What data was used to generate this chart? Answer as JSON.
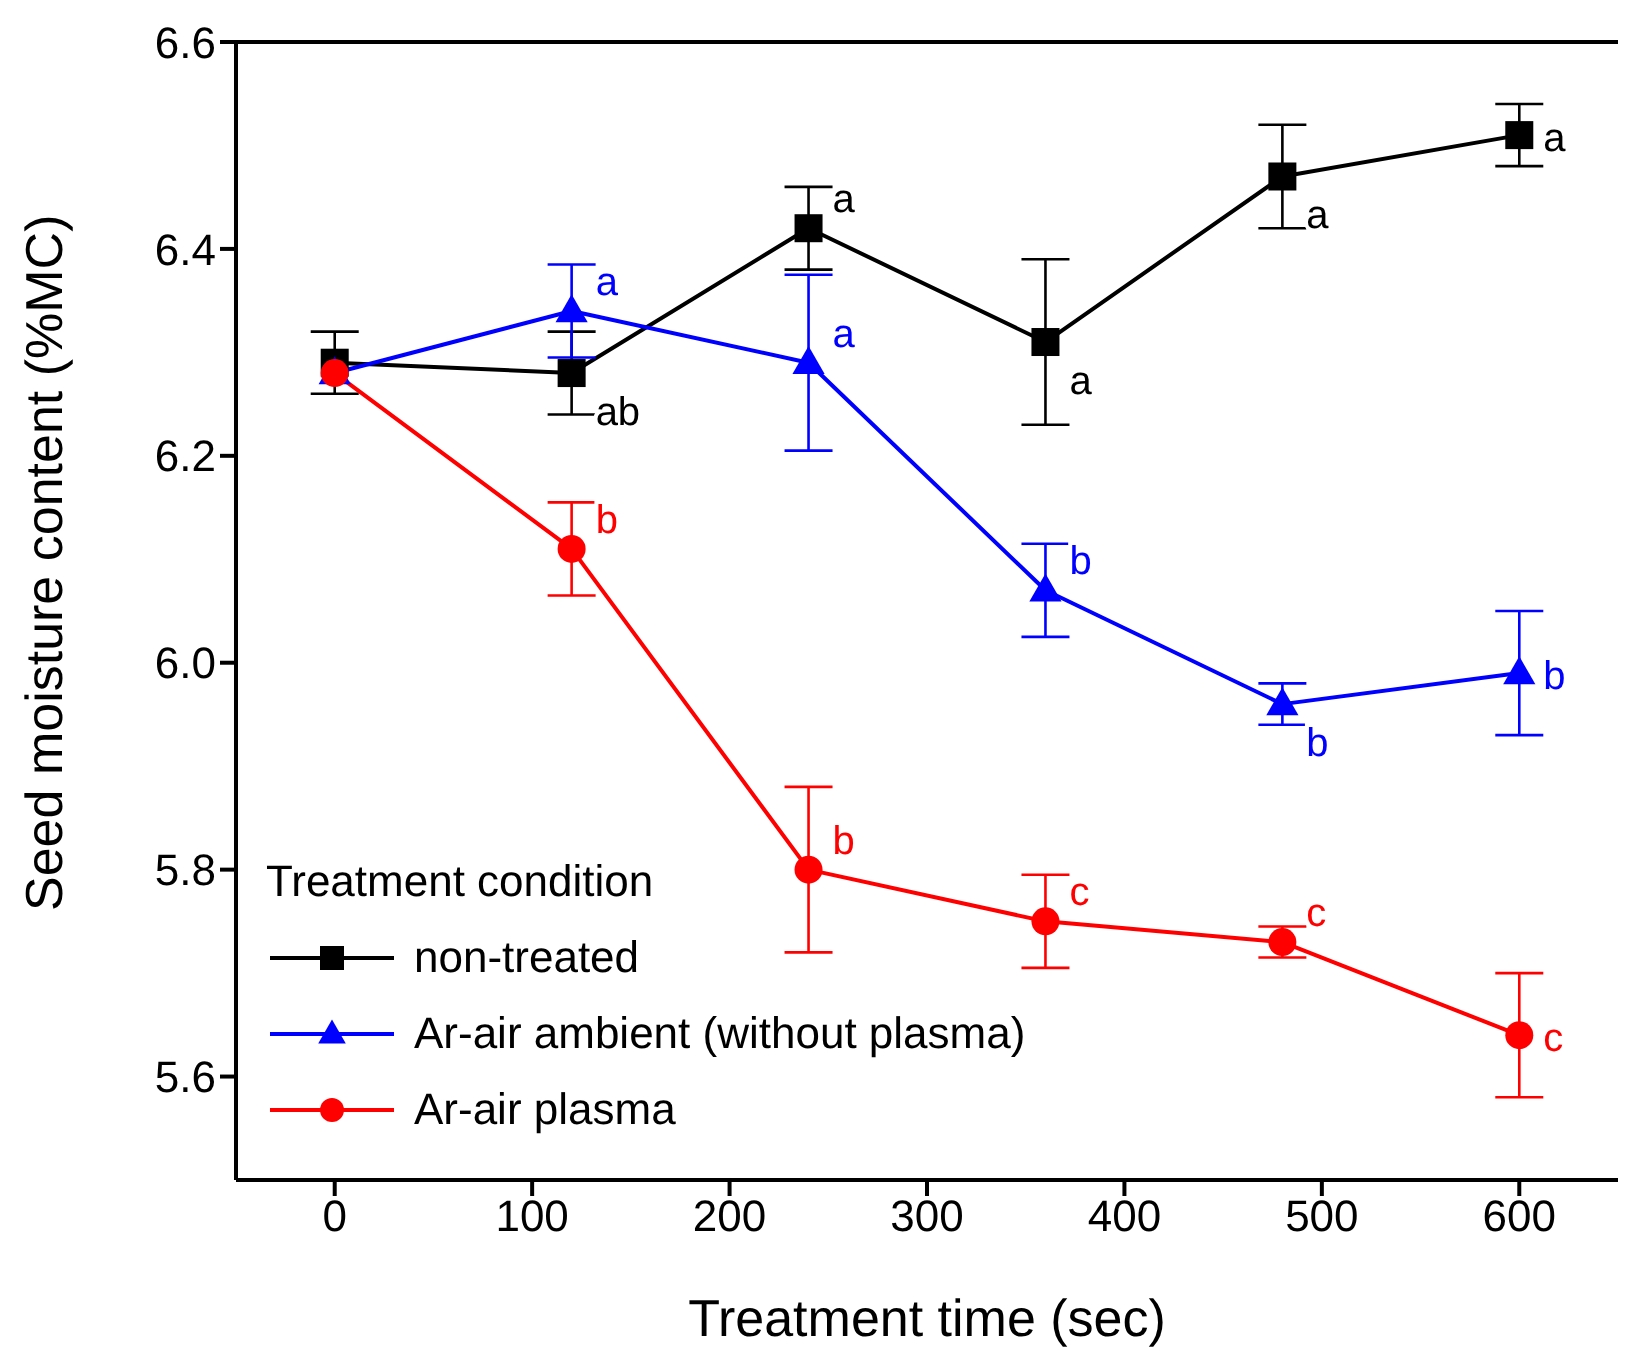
{
  "chart_data": {
    "type": "line",
    "xlabel": "Treatment time (sec)",
    "ylabel": "Seed moisture content (%MC)",
    "legend_title": "Treatment condition",
    "x": [
      0,
      120,
      240,
      360,
      480,
      600
    ],
    "xlim": [
      -50,
      650
    ],
    "xticks": [
      0,
      100,
      200,
      300,
      400,
      500,
      600
    ],
    "ylim": [
      5.5,
      6.6
    ],
    "yticks": [
      5.6,
      5.8,
      {
        "value": 6,
        "label": "6.0"
      },
      6.2,
      6.4,
      6.6
    ],
    "legend": "bottom left",
    "line_style": "solid",
    "series": [
      {
        "name": "non-treated",
        "color": "#000000",
        "marker": "square",
        "values": [
          6.29,
          6.28,
          6.42,
          6.31,
          6.47,
          6.51
        ],
        "errors": [
          0.03,
          0.04,
          0.04,
          0.08,
          0.05,
          0.03
        ],
        "value_labels": [
          null,
          "ab",
          "a",
          "a",
          "a",
          "a"
        ]
      },
      {
        "name": "Ar-air ambient (without plasma)",
        "color": "#0000ff",
        "marker": "triangle",
        "values": [
          6.28,
          6.34,
          6.29,
          6.07,
          5.96,
          5.99
        ],
        "errors": [
          null,
          0.045,
          0.085,
          0.045,
          0.02,
          0.06
        ],
        "value_labels": [
          null,
          "a",
          "a",
          "b",
          "b",
          "b"
        ]
      },
      {
        "name": "Ar-air  plasma",
        "color": "#ff0000",
        "marker": "circle",
        "values": [
          6.28,
          6.11,
          5.8,
          5.75,
          5.73,
          5.64
        ],
        "errors": [
          null,
          0.045,
          0.08,
          0.045,
          0.015,
          0.06
        ],
        "value_labels": [
          null,
          "b",
          "b",
          "c",
          "c",
          "c"
        ]
      }
    ]
  }
}
